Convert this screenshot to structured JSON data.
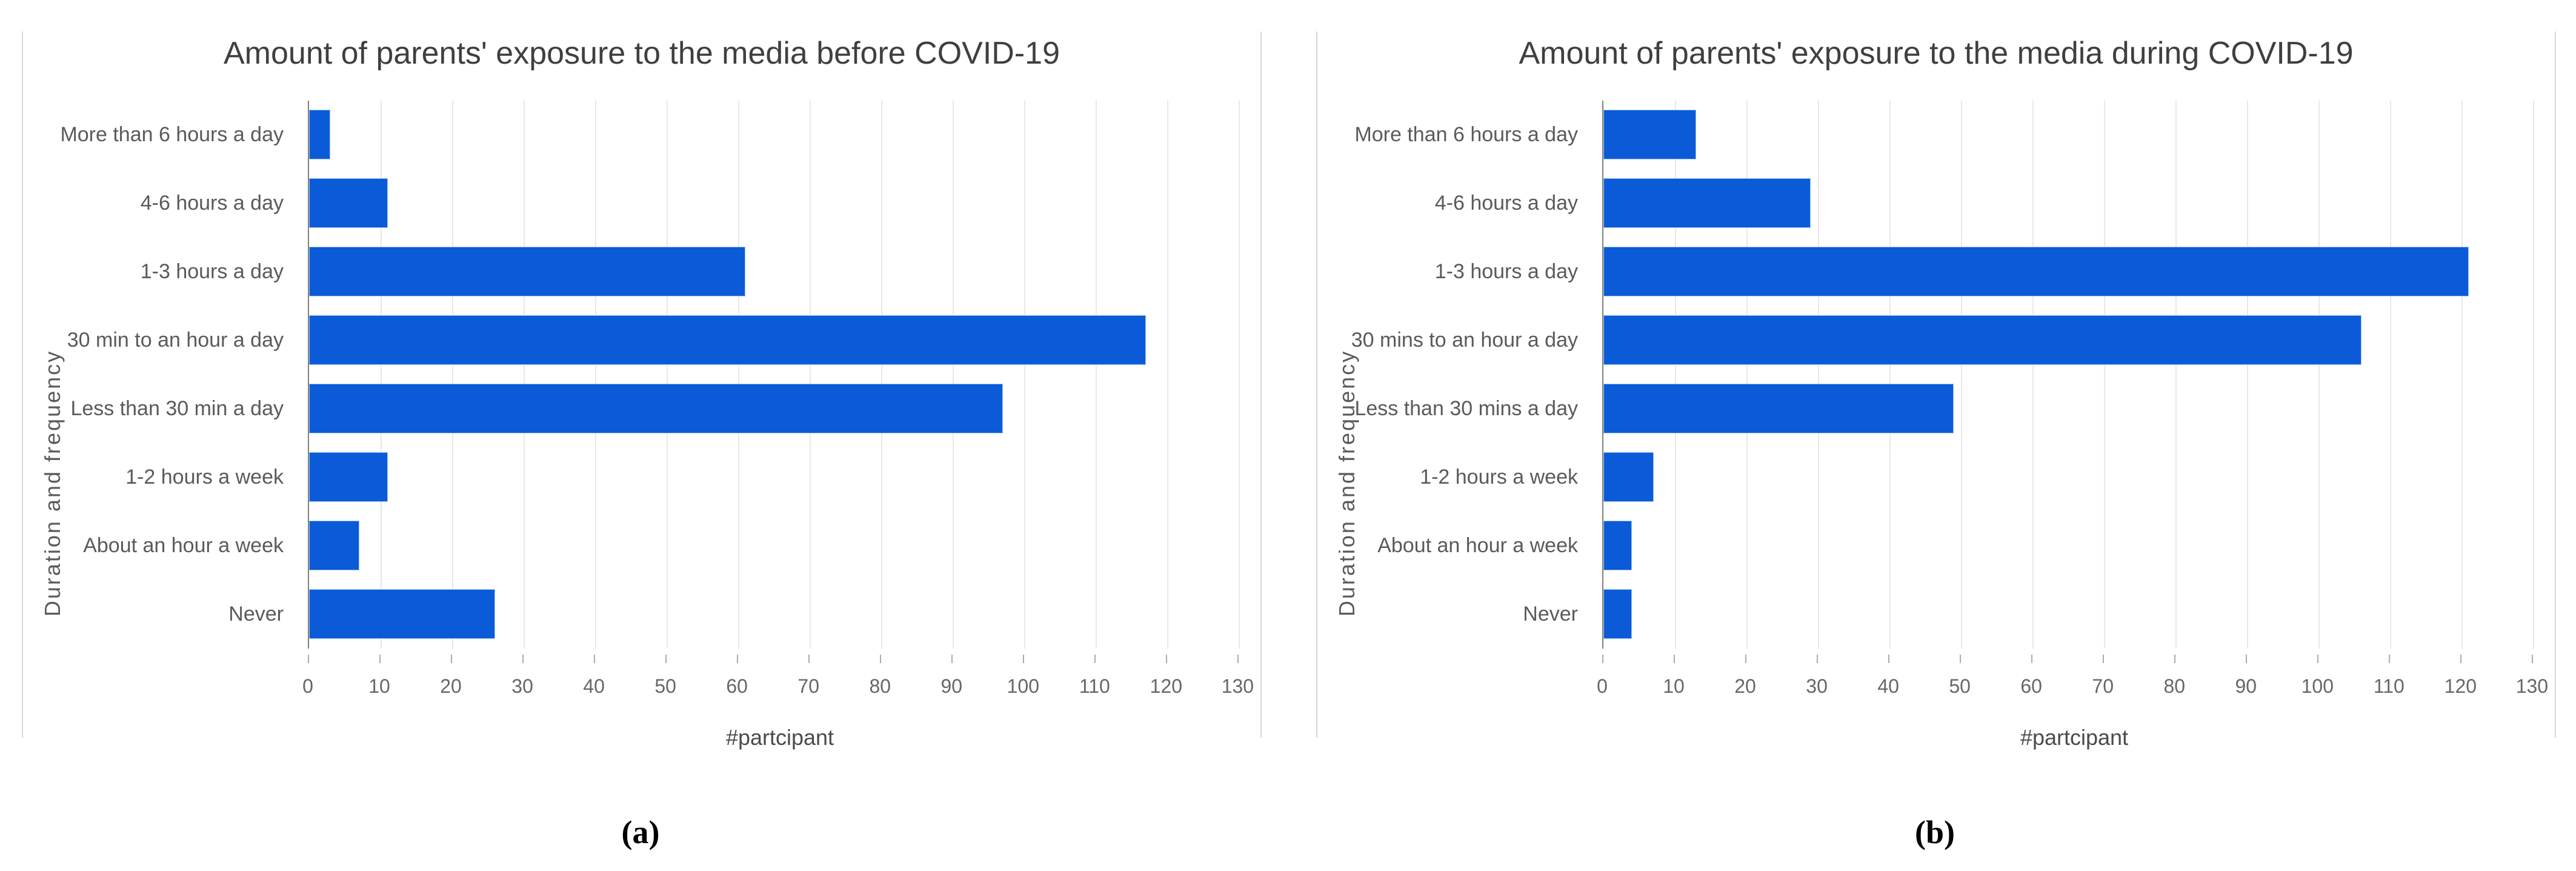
{
  "figure": {
    "caption_a": "(a)",
    "caption_b": "(b)"
  },
  "chart_data": [
    {
      "type": "bar",
      "orientation": "horizontal",
      "title": "Amount of parents' exposure to the media before COVID-19",
      "xlabel": "#partcipant",
      "ylabel": "Duration and frequency",
      "categories": [
        "More than 6 hours a day",
        "4-6 hours a day",
        "1-3 hours a day",
        "30 min to an hour a day",
        "Less than 30 min a day",
        "1-2 hours a week",
        "About an hour a week",
        "Never"
      ],
      "values": [
        3,
        11,
        61,
        117,
        97,
        11,
        7,
        26
      ],
      "xlim": [
        0,
        132
      ],
      "xticks": [
        0,
        10,
        20,
        30,
        40,
        50,
        60,
        70,
        80,
        90,
        100,
        110,
        120,
        130
      ],
      "grid": "vertical-gridlines",
      "legend": "none"
    },
    {
      "type": "bar",
      "orientation": "horizontal",
      "title": "Amount of parents' exposure to the media during COVID-19",
      "xlabel": "#partcipant",
      "ylabel": "Duration and frequency",
      "categories": [
        "More than 6 hours a day",
        "4-6 hours a day",
        "1-3 hours a day",
        "30 mins to an hour a day",
        "Less than 30 mins a day",
        "1-2 hours a week",
        "About an hour a week",
        "Never"
      ],
      "values": [
        13,
        29,
        121,
        106,
        49,
        7,
        4,
        4
      ],
      "xlim": [
        0,
        132
      ],
      "xticks": [
        0,
        10,
        20,
        30,
        40,
        50,
        60,
        70,
        80,
        90,
        100,
        110,
        120,
        130
      ],
      "grid": "vertical-gridlines",
      "legend": "none"
    }
  ],
  "colors": {
    "bar": "#0b5bd9",
    "bar_edge": "#9cc3f0",
    "grid": "#e8e8e8",
    "axis_line": "#7f7f7f",
    "tick_mark": "#ababab",
    "panel_border": "#d6d6d6",
    "title_text": "#3f3f3f",
    "label_text": "#5a5a5a",
    "tick_text": "#666666",
    "xlabel_text": "#4a4a4a"
  }
}
